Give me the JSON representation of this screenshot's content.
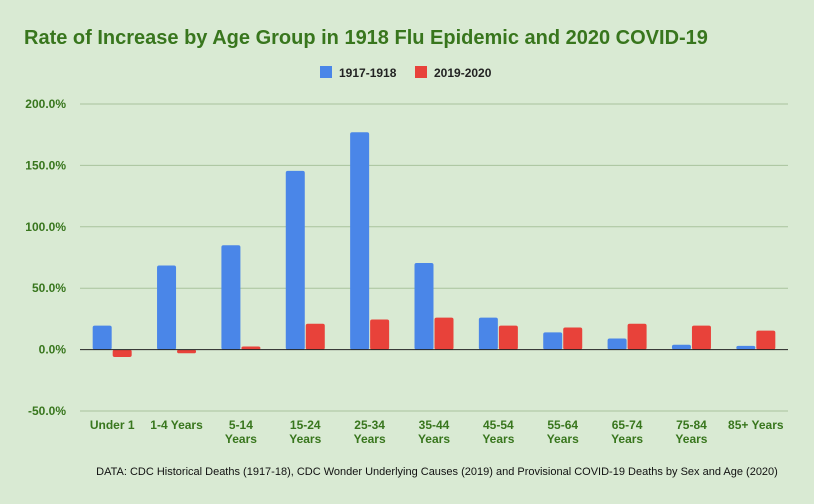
{
  "chart_data": {
    "type": "bar",
    "title": "Rate of Increase by Age Group in 1918 Flu Epidemic and 2020 COVID-19",
    "categories": [
      "Under 1",
      "1-4 Years",
      "5-14 Years",
      "15-24 Years",
      "25-34 Years",
      "35-44 Years",
      "45-54 Years",
      "55-64 Years",
      "65-74 Years",
      "75-84 Years",
      "85+ Years"
    ],
    "series": [
      {
        "name": "1917-1918",
        "color": "#4a86e8",
        "values": [
          19.5,
          68.5,
          85.0,
          145.5,
          177.0,
          70.5,
          26.0,
          14.0,
          9.0,
          4.0,
          3.0
        ]
      },
      {
        "name": "2019-2020",
        "color": "#e8423a",
        "values": [
          -6.0,
          -3.0,
          2.5,
          21.0,
          24.5,
          26.0,
          19.5,
          18.0,
          21.0,
          19.5,
          15.5
        ]
      }
    ],
    "ylim": [
      -50,
      200
    ],
    "yticks": [
      "200.0%",
      "150.0%",
      "100.0%",
      "50.0%",
      "0.0%",
      "-50.0%"
    ],
    "grid": true,
    "legend_position": "top-center",
    "source_note": "DATA: CDC Historical Deaths (1917-18), CDC Wonder Underlying Causes (2019) and Provisional COVID-19 Deaths by Sex and Age (2020)"
  },
  "colors": {
    "background": "#d9ead3",
    "title": "#38761d",
    "axis_labels": "#38761d"
  }
}
